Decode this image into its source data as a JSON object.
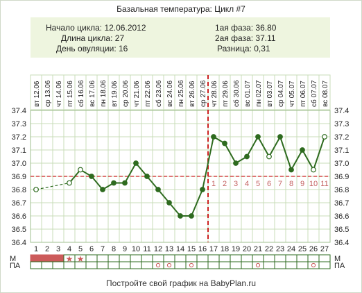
{
  "title": "Базальная температура: Цикл #7",
  "summary": {
    "cycle_start": "Начало цикла: 12.06.2012",
    "cycle_length": "Длина цикла: 27",
    "ovulation_day": "День овуляции: 16",
    "phase1": "1ая фаза: 36.80",
    "phase2": "2ая фаза: 37.11",
    "difference": "Разница: 0,31"
  },
  "footer": "Постройте свой график на BabyPlan.ru",
  "row_labels": {
    "m": "М",
    "pa": "ПА"
  },
  "colors": {
    "line": "#2e6b1f",
    "point_fill": "#2e6b1f",
    "hollow_point": "#ffffff",
    "coverline": "#cc2222",
    "ovulation_line": "#cc2222",
    "grid": "#c8dcb8",
    "mens_fill": "#cc5a5a",
    "phase_label": "#c46060"
  },
  "chart_data": {
    "type": "line",
    "title": "Базальная температура: Цикл #7",
    "cycle_days": [
      1,
      2,
      3,
      4,
      5,
      6,
      7,
      8,
      9,
      10,
      11,
      12,
      13,
      14,
      15,
      16,
      17,
      18,
      19,
      20,
      21,
      22,
      23,
      24,
      25,
      26,
      27
    ],
    "weekdays": [
      "вт",
      "ср",
      "чт",
      "пт",
      "сб",
      "вс",
      "пн",
      "вт",
      "ср",
      "чт",
      "пт",
      "сб",
      "вс",
      "пн",
      "вт",
      "ср",
      "чт",
      "пт",
      "сб",
      "вс",
      "пн",
      "вт",
      "ср",
      "чт",
      "пт",
      "сб",
      "вс"
    ],
    "dates": [
      "12.06",
      "13.06",
      "14.06",
      "15.06",
      "16.06",
      "17.06",
      "18.06",
      "19.06",
      "20.06",
      "21.06",
      "22.06",
      "23.06",
      "24.06",
      "25.06",
      "26.06",
      "27.06",
      "28.06",
      "29.06",
      "30.06",
      "01.07",
      "02.07",
      "03.07",
      "04.07",
      "05.07",
      "06.07",
      "07.07",
      "08.07"
    ],
    "temperatures": [
      36.8,
      null,
      null,
      36.85,
      36.95,
      36.9,
      36.8,
      36.85,
      36.85,
      37.0,
      36.9,
      36.8,
      36.7,
      36.6,
      36.6,
      36.8,
      37.2,
      37.15,
      37.0,
      37.05,
      37.2,
      37.05,
      37.2,
      36.95,
      37.1,
      36.95,
      37.2
    ],
    "hollow_points": [
      1,
      4,
      5,
      22,
      26,
      27
    ],
    "ylim": [
      36.4,
      37.4
    ],
    "yticks": [
      "36.4",
      "36.5",
      "36.6",
      "36.7",
      "36.8",
      "36.9",
      "37.0",
      "37.1",
      "37.2",
      "37.3",
      "37.4"
    ],
    "coverline": 36.9,
    "ovulation_day": 16,
    "phase2_day_labels": [
      "1",
      "2",
      "3",
      "4",
      "5",
      "6",
      "7",
      "8",
      "9",
      "10",
      "11"
    ],
    "menstruation_days": [
      1,
      2,
      3
    ],
    "menstruation_stars": [
      4,
      5
    ],
    "pa_marks": [
      12,
      13,
      15,
      21,
      26
    ],
    "grid": true
  }
}
